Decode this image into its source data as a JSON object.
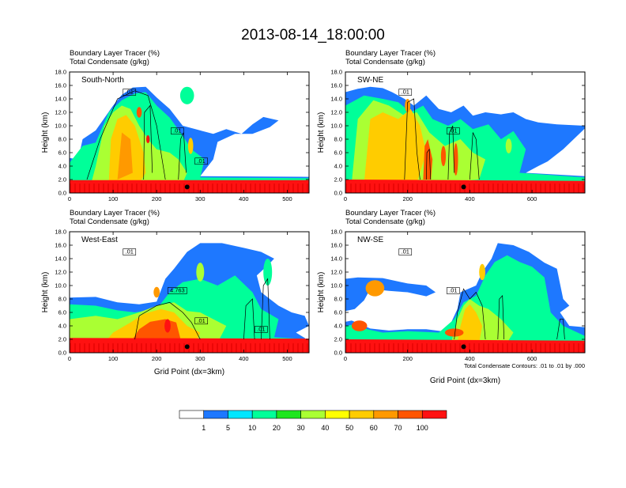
{
  "title": "2013-08-14_18:00:00",
  "colors": {
    "levels": [
      "#ffffff",
      "#1e78ff",
      "#00e6ff",
      "#00ff99",
      "#1ee61e",
      "#aaff33",
      "#ffff00",
      "#ffcc00",
      "#ff9900",
      "#ff5500",
      "#ff1111"
    ],
    "contour": "#000000"
  },
  "colorbar": {
    "labels": [
      "1",
      "5",
      "10",
      "20",
      "30",
      "40",
      "50",
      "60",
      "70",
      "100"
    ]
  },
  "chart_data": [
    {
      "type": "heatmap",
      "name": "South-North",
      "label": "South-North",
      "subtitle_1": "Boundary Layer Tracer    (%)",
      "subtitle_2": "Total Condensate    (g/kg)",
      "xlabel": "",
      "ylabel": "Height (km)",
      "xlim": [
        0,
        550
      ],
      "ylim": [
        0,
        18
      ],
      "xticks": [
        "0",
        "100",
        "200",
        "300",
        "400",
        "500"
      ],
      "yticks": [
        "0.0",
        "2.0",
        "4.0",
        "6.0",
        "8.0",
        "10.0",
        "12.0",
        "14.0",
        "16.0",
        "18.0"
      ],
      "contour_labels": [
        ".01",
        ".01",
        ".01"
      ]
    },
    {
      "type": "heatmap",
      "name": "SW-NE",
      "label": "SW-NE",
      "subtitle_1": "Boundary Layer Tracer    (%)",
      "subtitle_2": "Total Condensate    (g/kg)",
      "xlabel": "",
      "ylabel": "Height (km)",
      "xlim": [
        0,
        770
      ],
      "ylim": [
        0,
        18
      ],
      "xticks": [
        "0",
        "200",
        "400",
        "600"
      ],
      "yticks": [
        "0.0",
        "2.0",
        "4.0",
        "6.0",
        "8.0",
        "10.0",
        "12.0",
        "14.0",
        "16.0",
        "18.0"
      ],
      "contour_labels": [
        ".01",
        ".01"
      ]
    },
    {
      "type": "heatmap",
      "name": "West-East",
      "label": "West-East",
      "subtitle_1": "Boundary Layer Tracer    (%)",
      "subtitle_2": "Total Condensate    (g/kg)",
      "xlabel": "Grid Point (dx=3km)",
      "ylabel": "Height (km)",
      "xlim": [
        0,
        550
      ],
      "ylim": [
        0,
        18
      ],
      "xticks": [
        "0",
        "100",
        "200",
        "300",
        "400",
        "500"
      ],
      "yticks": [
        "0.0",
        "2.0",
        "4.0",
        "6.0",
        "8.0",
        "10.0",
        "12.0",
        "14.0",
        "16.0",
        "18.0"
      ],
      "contour_labels": [
        ".01",
        "4.763",
        ".01",
        ".01"
      ]
    },
    {
      "type": "heatmap",
      "name": "NW-SE",
      "label": "NW-SE",
      "subtitle_1": "Boundary Layer Tracer    (%)",
      "subtitle_2": "Total Condensate    (g/kg)",
      "xlabel": "Grid Point (dx=3km)",
      "ylabel": "Height (km)",
      "xlim": [
        0,
        770
      ],
      "ylim": [
        0,
        18
      ],
      "xticks": [
        "0",
        "200",
        "400",
        "600"
      ],
      "yticks": [
        "0.0",
        "2.0",
        "4.0",
        "6.0",
        "8.0",
        "10.0",
        "12.0",
        "14.0",
        "16.0",
        "18.0"
      ],
      "contour_labels": [
        ".01",
        ".01"
      ],
      "note": "Total Condensate Contours: .01 to .01 by .000"
    }
  ]
}
